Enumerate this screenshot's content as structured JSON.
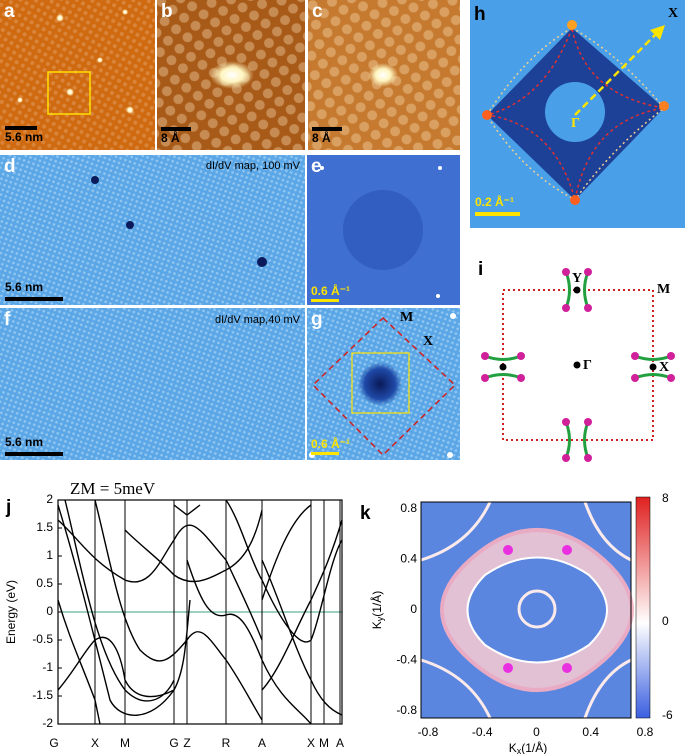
{
  "panels": {
    "a": {
      "label": "a",
      "scale": "5.6 nm"
    },
    "b": {
      "label": "b",
      "scale": "8 Å"
    },
    "c": {
      "label": "c",
      "scale": "8 Å"
    },
    "d": {
      "label": "d",
      "caption": "dI/dV map, 100 mV",
      "scale": "5.6 nm"
    },
    "e": {
      "label": "e",
      "scale": "0.6 Å⁻¹"
    },
    "f": {
      "label": "f",
      "caption": "dI/dV map,40 mV",
      "scale": "5.6 nm"
    },
    "g": {
      "label": "g",
      "scale": "0.6 Å⁻¹",
      "points": [
        "M",
        "X"
      ]
    },
    "h": {
      "label": "h",
      "scale": "0.2 Å⁻¹",
      "points": [
        "X",
        "Γ"
      ]
    },
    "i": {
      "label": "i",
      "points": [
        "Y",
        "M",
        "Γ",
        "X"
      ]
    },
    "j": {
      "label": "j",
      "title": "ZM = 5meV",
      "ylabel": "Energy (eV)",
      "yticks": [
        "2",
        "1.5",
        "1",
        "0.5",
        "0",
        "-0.5",
        "-1",
        "-1.5",
        "-2"
      ],
      "xticks": [
        "G",
        "X",
        "M",
        "G",
        "Z",
        "R",
        "A",
        "X",
        "M",
        "A"
      ]
    },
    "k": {
      "label": "k",
      "xlabel": {
        "main": "K",
        "sub": "x",
        "unit": "(1/Å)"
      },
      "ylabel": {
        "main": "K",
        "sub": "y",
        "unit": "(1/Å)"
      },
      "xticks": [
        "-0.8",
        "-0.4",
        "0",
        "0.4",
        "0.8"
      ],
      "yticks": [
        "0.8",
        "0.4",
        "0",
        "-0.4",
        "-0.8"
      ],
      "colorbar": [
        "8",
        "0",
        "-6"
      ]
    }
  }
}
